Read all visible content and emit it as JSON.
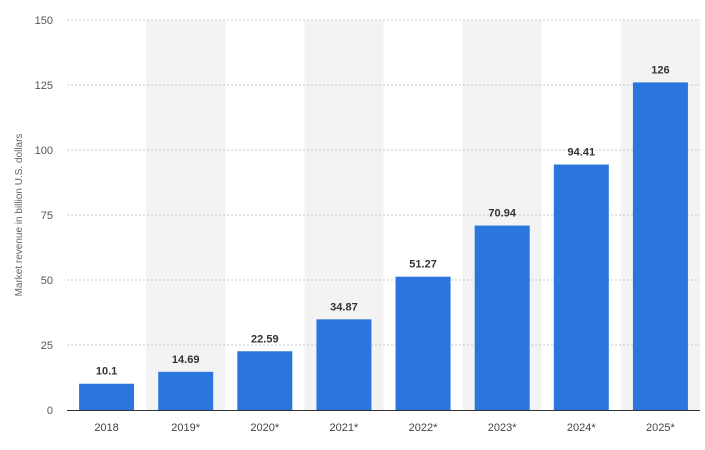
{
  "chart_data": {
    "type": "bar",
    "title": "",
    "xlabel": "",
    "ylabel": "Market revenue in billion U.S. dollars",
    "categories": [
      "2018",
      "2019*",
      "2020*",
      "2021*",
      "2022*",
      "2023*",
      "2024*",
      "2025*"
    ],
    "values": [
      10.1,
      14.69,
      22.59,
      34.87,
      51.27,
      70.94,
      94.41,
      126
    ],
    "value_labels": [
      "10.1",
      "14.69",
      "22.59",
      "34.87",
      "51.27",
      "70.94",
      "94.41",
      "126"
    ],
    "ylim": [
      0,
      150
    ],
    "yticks": [
      0,
      25,
      50,
      75,
      100,
      125,
      150
    ],
    "grid": "horizontal dashed",
    "legend": "none",
    "colors": {
      "bar": "#2a76dd",
      "band": "#f3f3f3",
      "grid": "#c8c8c8",
      "axis": "#333333"
    }
  }
}
